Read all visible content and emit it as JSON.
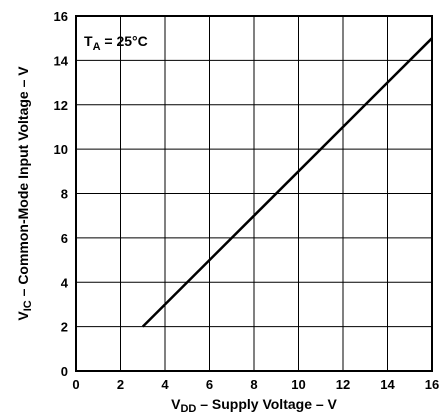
{
  "chart_data": {
    "type": "line",
    "title": "",
    "xlabel": {
      "prefix": "V",
      "sub": "DD",
      "suffix": " – Supply Voltage – V"
    },
    "ylabel": {
      "prefix": "V",
      "sub": "IC",
      "suffix": " – Common-Mode Input Voltage – V"
    },
    "xlim": [
      0,
      16
    ],
    "ylim": [
      0,
      16
    ],
    "x_ticks": [
      0,
      2,
      4,
      6,
      8,
      10,
      12,
      14,
      16
    ],
    "y_ticks": [
      0,
      2,
      4,
      6,
      8,
      10,
      12,
      14,
      16
    ],
    "grid": true,
    "annotation": {
      "prefix": "T",
      "sub": "A",
      "suffix": " = 25°C",
      "position": "top-left"
    },
    "series": [
      {
        "x": [
          3,
          16
        ],
        "y": [
          2,
          15
        ]
      }
    ]
  }
}
